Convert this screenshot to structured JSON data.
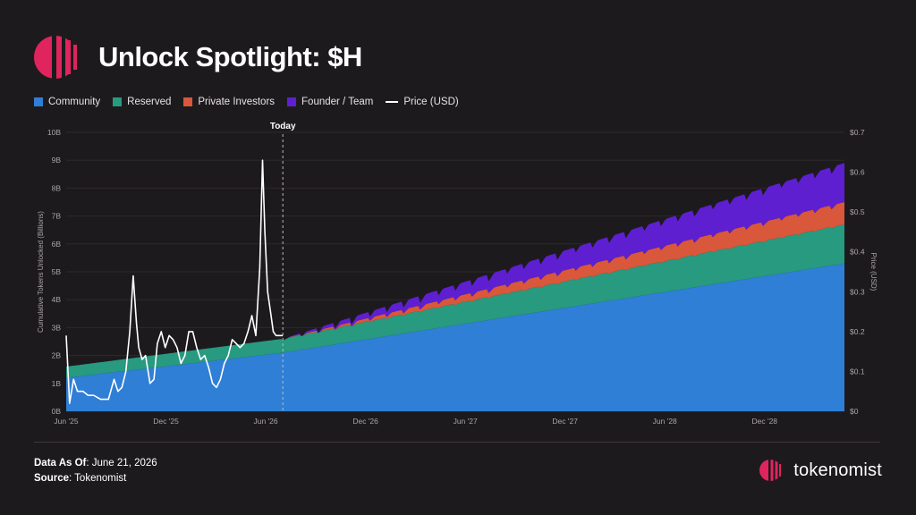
{
  "header": {
    "title": "Unlock Spotlight: $H"
  },
  "colors": {
    "community": "#2f7fd6",
    "reserved": "#279a80",
    "private_investors": "#d9573a",
    "founder_team": "#5e1fd1",
    "price": "#ffffff",
    "brand": "#e0245e"
  },
  "legend": [
    {
      "label": "Community",
      "color": "#2f7fd6",
      "kind": "box"
    },
    {
      "label": "Reserved",
      "color": "#279a80",
      "kind": "box"
    },
    {
      "label": "Private Investors",
      "color": "#d9573a",
      "kind": "box"
    },
    {
      "label": "Founder / Team",
      "color": "#5e1fd1",
      "kind": "box"
    },
    {
      "label": "Price (USD)",
      "color": "#ffffff",
      "kind": "line"
    }
  ],
  "chart_data": {
    "type": "area",
    "xlabel": "",
    "ylabel": "Cumulative Tokens Unlocked (Billions)",
    "y2label": "Price (USD)",
    "x_ticks": [
      "Jun '25",
      "Dec '25",
      "Jun '26",
      "Dec '26",
      "Jun '27",
      "Dec '27",
      "Jun '28",
      "Dec '28"
    ],
    "y_ticks": [
      "0B",
      "1B",
      "2B",
      "3B",
      "4B",
      "5B",
      "6B",
      "7B",
      "8B",
      "9B",
      "10B"
    ],
    "y2_ticks": [
      "$0",
      "$0.1",
      "$0.2",
      "$0.3",
      "$0.4",
      "$0.5",
      "$0.6",
      "$0.7"
    ],
    "ylim": [
      0,
      10
    ],
    "y2lim": [
      0,
      0.7
    ],
    "x_range": [
      "2025-06-01",
      "2029-03-15"
    ],
    "today": {
      "label": "Today",
      "date": "2026-06-21"
    },
    "series": [
      {
        "name": "Community",
        "dates": [
          "2025-06-01",
          "2026-06-21",
          "2029-03-15"
        ],
        "values": [
          1.2,
          2.1,
          5.3
        ]
      },
      {
        "name": "Reserved",
        "dates": [
          "2025-06-01",
          "2026-06-21",
          "2029-03-15"
        ],
        "values": [
          0.4,
          0.5,
          1.4
        ]
      },
      {
        "name": "Private Investors",
        "dates": [
          "2026-06-21",
          "2029-03-15"
        ],
        "values": [
          0.0,
          0.8
        ]
      },
      {
        "name": "Founder / Team",
        "dates": [
          "2026-06-21",
          "2029-03-15"
        ],
        "values": [
          0.0,
          1.4
        ]
      }
    ],
    "price": {
      "name": "Price (USD)",
      "dates": [
        "2025-06-01",
        "2025-06-07",
        "2025-06-14",
        "2025-06-21",
        "2025-07-01",
        "2025-07-10",
        "2025-07-20",
        "2025-08-01",
        "2025-08-15",
        "2025-08-25",
        "2025-09-01",
        "2025-09-08",
        "2025-09-15",
        "2025-09-22",
        "2025-09-28",
        "2025-10-04",
        "2025-10-08",
        "2025-10-14",
        "2025-10-20",
        "2025-10-28",
        "2025-11-04",
        "2025-11-10",
        "2025-11-17",
        "2025-11-24",
        "2025-12-01",
        "2025-12-08",
        "2025-12-15",
        "2025-12-22",
        "2025-12-29",
        "2026-01-05",
        "2026-01-12",
        "2026-01-19",
        "2026-01-26",
        "2026-02-02",
        "2026-02-09",
        "2026-02-16",
        "2026-02-23",
        "2026-03-02",
        "2026-03-09",
        "2026-03-16",
        "2026-03-23",
        "2026-03-30",
        "2026-04-06",
        "2026-04-13",
        "2026-04-20",
        "2026-04-27",
        "2026-05-04",
        "2026-05-11",
        "2026-05-16",
        "2026-05-20",
        "2026-05-25",
        "2026-05-30",
        "2026-06-04",
        "2026-06-09",
        "2026-06-14",
        "2026-06-21"
      ],
      "values": [
        0.19,
        0.02,
        0.08,
        0.05,
        0.05,
        0.04,
        0.04,
        0.03,
        0.03,
        0.08,
        0.05,
        0.06,
        0.1,
        0.2,
        0.34,
        0.22,
        0.16,
        0.13,
        0.14,
        0.07,
        0.08,
        0.17,
        0.2,
        0.16,
        0.19,
        0.18,
        0.16,
        0.12,
        0.14,
        0.2,
        0.2,
        0.16,
        0.13,
        0.14,
        0.11,
        0.07,
        0.06,
        0.08,
        0.12,
        0.14,
        0.18,
        0.17,
        0.16,
        0.17,
        0.2,
        0.24,
        0.19,
        0.36,
        0.63,
        0.45,
        0.3,
        0.25,
        0.2,
        0.19,
        0.19,
        0.19
      ]
    }
  },
  "footer": {
    "data_as_of_label": "Data As Of",
    "data_as_of_value": ": June 21, 2026",
    "source_label": "Source",
    "source_value": ": Tokenomist"
  },
  "brand": {
    "name": "tokenomist",
    "logo_icon": "tokenomist-logo-icon"
  }
}
